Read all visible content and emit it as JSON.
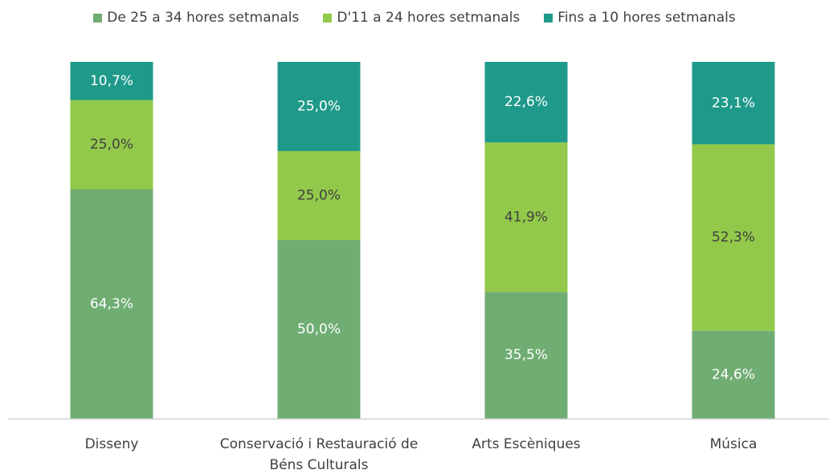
{
  "chart_data": {
    "type": "bar",
    "stacked": true,
    "categories": [
      "Disseny",
      "Conservació i Restauració de Béns Culturals",
      "Arts Escèniques",
      "Música"
    ],
    "series": [
      {
        "name": "De 25 a 34 hores setmanals",
        "color": "#70ad73",
        "values": [
          64.3,
          50.0,
          35.5,
          24.6
        ],
        "value_labels": [
          "64,3%",
          "50,0%",
          "35,5%",
          "24,6%"
        ]
      },
      {
        "name": "D'11 a 24 hores setmanals",
        "color": "#92c94a",
        "values": [
          25.0,
          25.0,
          41.9,
          52.3
        ],
        "value_labels": [
          "25,0%",
          "25,0%",
          "41,9%",
          "52,3%"
        ]
      },
      {
        "name": "Fins a 10 hores setmanals",
        "color": "#1f9a8a",
        "values": [
          10.7,
          25.0,
          22.6,
          23.1
        ],
        "value_labels": [
          "10,7%",
          "25,0%",
          "22,6%",
          "23,1%"
        ]
      }
    ],
    "legend": "top"
  }
}
